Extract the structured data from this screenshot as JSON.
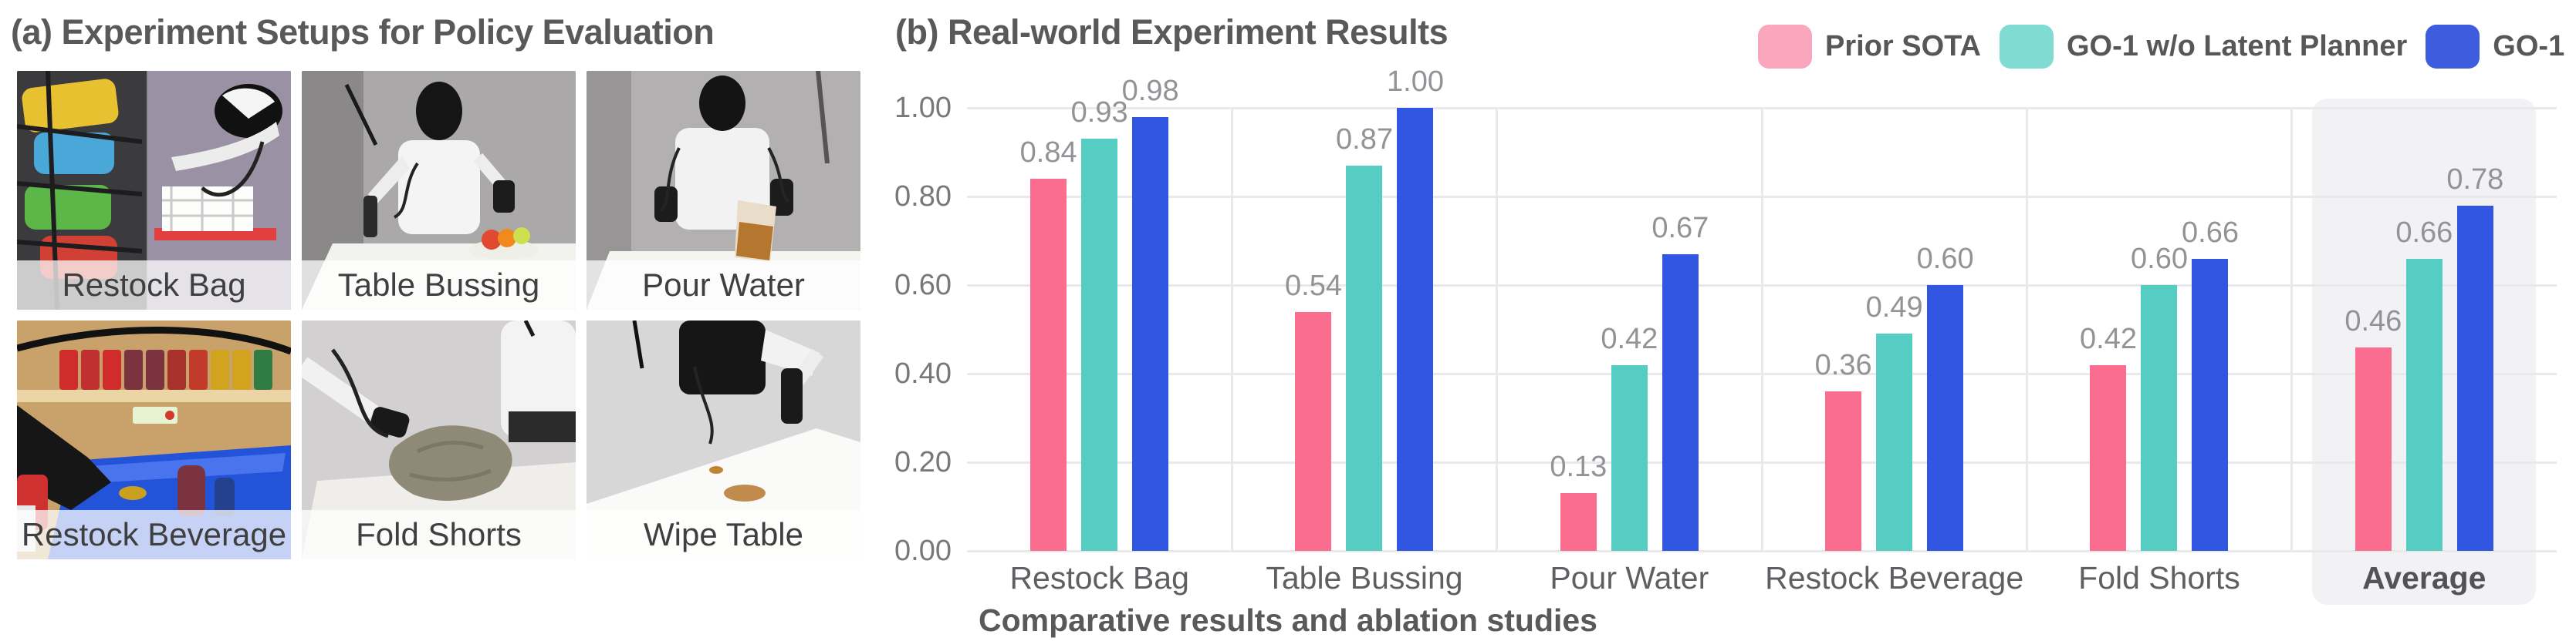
{
  "panel_a": {
    "title": "(a) Experiment Setups for Policy Evaluation",
    "photos": [
      {
        "label": "Restock Bag"
      },
      {
        "label": "Table Bussing"
      },
      {
        "label": "Pour Water"
      },
      {
        "label": "Restock Beverage"
      },
      {
        "label": "Fold Shorts"
      },
      {
        "label": "Wipe Table"
      }
    ]
  },
  "panel_b": {
    "title": "(b) Real-world Experiment Results",
    "caption": "Comparative results and ablation studies"
  },
  "legend": [
    {
      "label": "Prior SOTA",
      "swatch_color": "#FAA6BC"
    },
    {
      "label": "GO-1 w/o Latent Planner",
      "swatch_color": "#80DBD2"
    },
    {
      "label": "GO-1",
      "swatch_color": "#3D5CDE"
    }
  ],
  "chart_data": {
    "type": "bar",
    "title": "(b) Real-world Experiment Results",
    "xlabel": "",
    "ylabel": "",
    "categories": [
      "Restock Bag",
      "Table Bussing",
      "Pour Water",
      "Restock Beverage",
      "Fold Shorts",
      "Average"
    ],
    "series": [
      {
        "name": "Prior SOTA",
        "color": "#FA6D8F",
        "values": [
          0.84,
          0.54,
          0.13,
          0.36,
          0.42,
          0.46
        ]
      },
      {
        "name": "GO-1 w/o Latent Planner",
        "color": "#55CDC3",
        "values": [
          0.93,
          0.87,
          0.42,
          0.49,
          0.6,
          0.66
        ]
      },
      {
        "name": "GO-1",
        "color": "#3156E1",
        "values": [
          0.98,
          1.0,
          0.67,
          0.6,
          0.66,
          0.78
        ]
      }
    ],
    "ylim": [
      0,
      1.0
    ],
    "yticks": [
      0.0,
      0.2,
      0.4,
      0.6,
      0.8,
      1.0
    ],
    "grid": "horizontal",
    "legend_position": "top-right",
    "value_labels": true,
    "highlight": {
      "category": "Average",
      "color": "#F2F2F4"
    }
  }
}
